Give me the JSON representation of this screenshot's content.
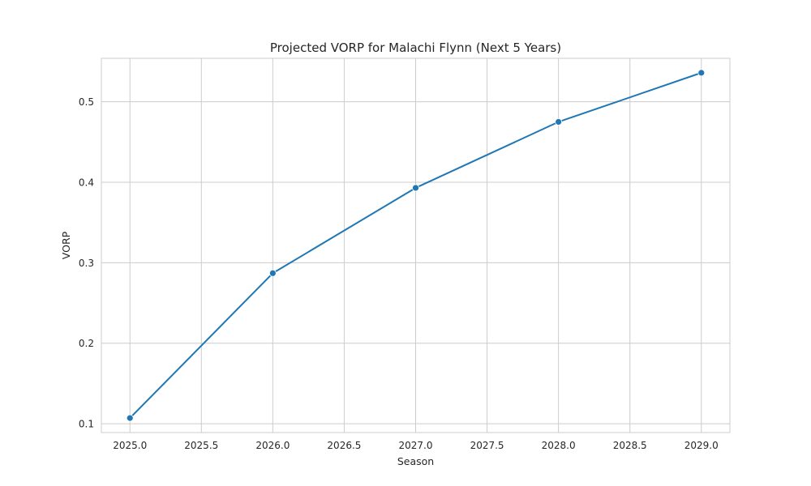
{
  "chart_data": {
    "type": "line",
    "title": "Projected VORP for Malachi Flynn (Next 5 Years)",
    "xlabel": "Season",
    "ylabel": "VORP",
    "x": [
      2025,
      2026,
      2027,
      2028,
      2029
    ],
    "series": [
      {
        "values": [
          0.107,
          0.287,
          0.393,
          0.475,
          0.536
        ],
        "color": "#1f77b4",
        "marker": "circle"
      }
    ],
    "xlim": [
      2024.8,
      2029.2
    ],
    "ylim": [
      0.089,
      0.554
    ],
    "xticks": [
      2025.0,
      2025.5,
      2026.0,
      2026.5,
      2027.0,
      2027.5,
      2028.0,
      2028.5,
      2029.0
    ],
    "xtick_labels": [
      "2025.0",
      "2025.5",
      "2026.0",
      "2026.5",
      "2027.0",
      "2027.5",
      "2028.0",
      "2028.5",
      "2029.0"
    ],
    "yticks": [
      0.1,
      0.2,
      0.3,
      0.4,
      0.5
    ],
    "ytick_labels": [
      "0.1",
      "0.2",
      "0.3",
      "0.4",
      "0.5"
    ],
    "grid": true,
    "legend": "none"
  }
}
